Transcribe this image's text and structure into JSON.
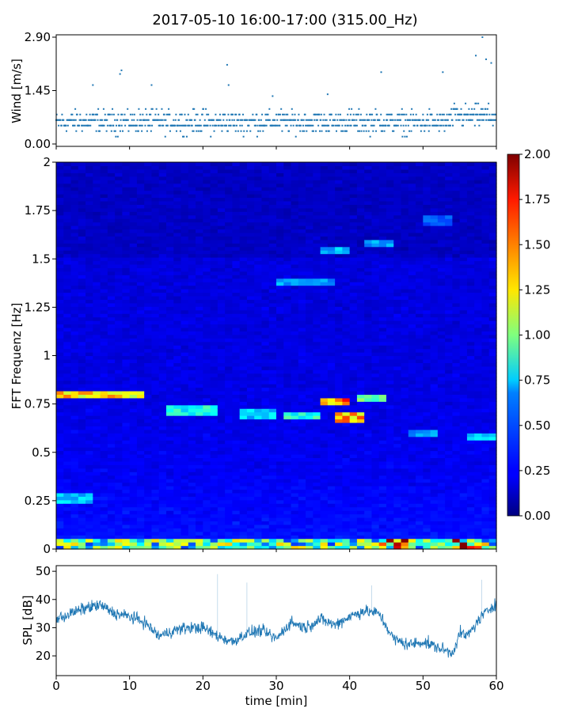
{
  "figure": {
    "title": "2017-05-10 16:00-17:00 (315.00_Hz)"
  },
  "chart_data": [
    {
      "type": "scatter",
      "panel": "wind",
      "title": "",
      "xlabel": "",
      "ylabel": "Wind [m/s]",
      "xlim": [
        0,
        60
      ],
      "ylim": [
        0.0,
        2.9
      ],
      "yticks": [
        "0.00",
        "1.45",
        "2.90"
      ],
      "color": "#1f77b4",
      "note": "point cloud mostly between 0.2 and 1.3 m/s with gusts",
      "gusts": [
        {
          "x": 5,
          "y": 1.6
        },
        {
          "x": 8.7,
          "y": 1.9
        },
        {
          "x": 8.9,
          "y": 2.0
        },
        {
          "x": 13,
          "y": 1.6
        },
        {
          "x": 23.3,
          "y": 2.15
        },
        {
          "x": 23.5,
          "y": 1.6
        },
        {
          "x": 29.5,
          "y": 1.3
        },
        {
          "x": 37,
          "y": 1.35
        },
        {
          "x": 44.3,
          "y": 1.95
        },
        {
          "x": 52.7,
          "y": 1.95
        },
        {
          "x": 57.2,
          "y": 2.4
        },
        {
          "x": 58.1,
          "y": 2.9
        },
        {
          "x": 58.6,
          "y": 2.3
        },
        {
          "x": 59.3,
          "y": 2.2
        }
      ]
    },
    {
      "type": "heatmap",
      "panel": "spectrogram",
      "title": "",
      "xlabel": "",
      "ylabel": "FFT Frequenz [Hz]",
      "xlim": [
        0,
        60
      ],
      "ylim": [
        0,
        2
      ],
      "yticks": [
        "0",
        "0.25",
        "0.5",
        "0.75",
        "1",
        "1.25",
        "1.5",
        "1.75",
        "2"
      ],
      "colormap": "jet",
      "colorbar": {
        "range": [
          0.0,
          2.0
        ],
        "ticks": [
          "0.00",
          "0.25",
          "0.50",
          "0.75",
          "1.00",
          "1.25",
          "1.50",
          "1.75",
          "2.00"
        ]
      },
      "features": [
        {
          "t0": 0,
          "t1": 12,
          "f": 0.8,
          "level": 1.4
        },
        {
          "t0": 15,
          "t1": 22,
          "f": 0.72,
          "level": 0.85
        },
        {
          "t0": 25,
          "t1": 30,
          "f": 0.7,
          "level": 0.7
        },
        {
          "t0": 31,
          "t1": 36,
          "f": 0.69,
          "level": 0.9
        },
        {
          "t0": 36,
          "t1": 40,
          "f": 0.76,
          "level": 1.6
        },
        {
          "t0": 38,
          "t1": 42,
          "f": 0.68,
          "level": 1.5
        },
        {
          "t0": 41,
          "t1": 45,
          "f": 0.78,
          "level": 1.0
        },
        {
          "t0": 30,
          "t1": 38,
          "f": 1.38,
          "level": 0.6
        },
        {
          "t0": 36,
          "t1": 40,
          "f": 1.55,
          "level": 0.65
        },
        {
          "t0": 42,
          "t1": 46,
          "f": 1.58,
          "level": 0.6
        },
        {
          "t0": 50,
          "t1": 54,
          "f": 1.7,
          "level": 0.45
        },
        {
          "t0": 48,
          "t1": 52,
          "f": 0.6,
          "level": 0.6
        },
        {
          "t0": 56,
          "t1": 60,
          "f": 0.58,
          "level": 0.7
        },
        {
          "t0": 0,
          "t1": 5,
          "f": 0.26,
          "level": 0.7
        }
      ]
    },
    {
      "type": "line",
      "panel": "spl",
      "title": "",
      "xlabel": "time [min]",
      "ylabel": "SPL [dB]",
      "xlim": [
        0,
        60
      ],
      "ylim": [
        13,
        52
      ],
      "xticks": [
        "0",
        "10",
        "20",
        "30",
        "40",
        "50",
        "60"
      ],
      "yticks": [
        "20",
        "30",
        "40",
        "50"
      ],
      "color": "#1f77b4",
      "x": [
        0,
        2,
        4,
        6,
        8,
        10,
        12,
        14,
        16,
        18,
        20,
        22,
        24,
        26,
        28,
        30,
        32,
        34,
        36,
        38,
        40,
        42,
        44,
        46,
        48,
        50,
        52,
        54,
        55,
        56,
        58,
        60
      ],
      "y": [
        33,
        35,
        37,
        38,
        35,
        34,
        32,
        27,
        29,
        30,
        30,
        27,
        25,
        28,
        29,
        26,
        32,
        30,
        33,
        31,
        34,
        36,
        35,
        26,
        24,
        25,
        23,
        21,
        28,
        27,
        34,
        39
      ]
    }
  ]
}
